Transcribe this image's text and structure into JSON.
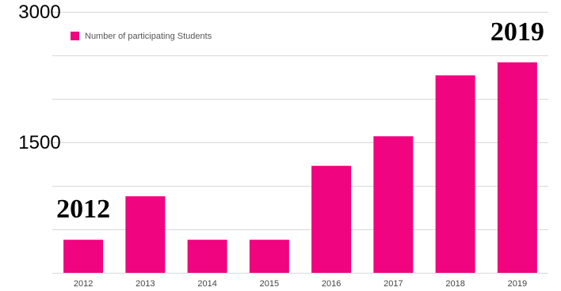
{
  "chart_data": {
    "type": "bar",
    "categories": [
      "2012",
      "2013",
      "2014",
      "2015",
      "2016",
      "2017",
      "2018",
      "2019"
    ],
    "series": [
      {
        "name": "Number of participating Students",
        "values": [
          380,
          880,
          380,
          380,
          1230,
          1570,
          2270,
          2420
        ]
      }
    ],
    "ylim": [
      0,
      3000
    ],
    "y_tick_labels": [
      {
        "value": 3000,
        "label": "3000"
      },
      {
        "value": 1500,
        "label": "1500"
      }
    ],
    "grid": true,
    "legend": "top-left",
    "bar_color": "#f0047f",
    "annotations": [
      {
        "category": "2012",
        "text": "2012"
      },
      {
        "category": "2019",
        "text": "2019"
      }
    ]
  }
}
